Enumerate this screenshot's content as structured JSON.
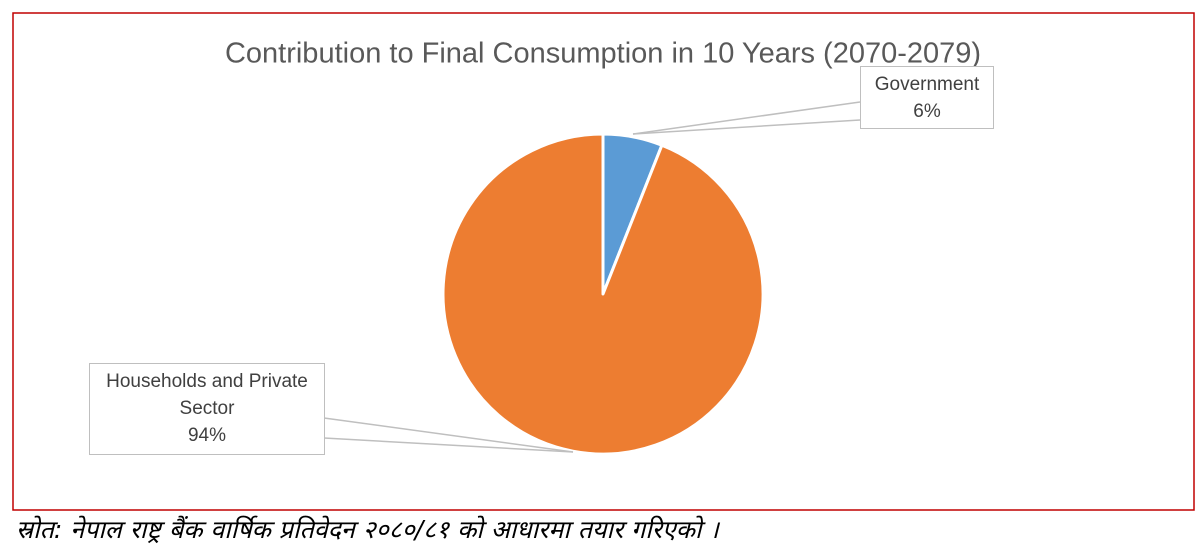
{
  "chart_data": {
    "type": "pie",
    "title": "Contribution to Final Consumption in 10 Years (2070-2079)",
    "categories": [
      "Government",
      "Households and Private Sector"
    ],
    "values": [
      6,
      94
    ],
    "value_labels": [
      "6%",
      "94%"
    ],
    "colors": [
      "#5b9bd5",
      "#ed7d31"
    ],
    "source": "स्रोत: नेपाल राष्ट्र बैंक वार्षिक प्रतिवेदन २०८०/८१ को आधारमा तयार गरिएको ।"
  }
}
